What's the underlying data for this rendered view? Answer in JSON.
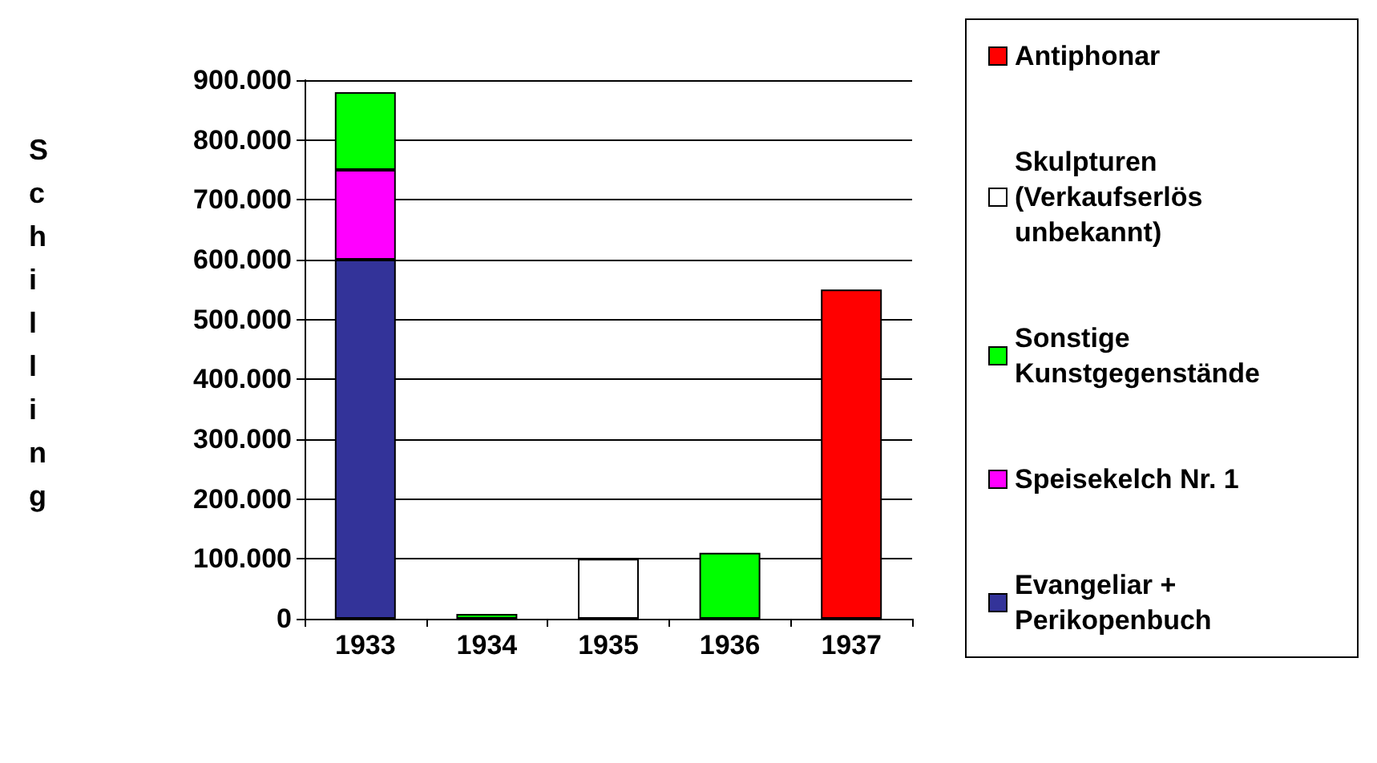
{
  "chart_data": {
    "type": "bar",
    "stacked": true,
    "ylabel": "Schilling",
    "categories": [
      "1933",
      "1934",
      "1935",
      "1936",
      "1937"
    ],
    "series": [
      {
        "name": "Evangeliar + Perikopenbuch",
        "color": "#333399",
        "values": [
          600000,
          null,
          null,
          null,
          null
        ]
      },
      {
        "name": "Speisekelch Nr. 1",
        "color": "#ff00ff",
        "values": [
          150000,
          null,
          null,
          null,
          null
        ]
      },
      {
        "name": "Sonstige Kunstgegenstände",
        "color": "#00ff00",
        "values": [
          130000,
          8000,
          null,
          110000,
          null
        ]
      },
      {
        "name": "Skulpturen (Verkaufserlös unbekannt)",
        "color": "#ffffff",
        "values": [
          null,
          null,
          100000,
          null,
          null
        ]
      },
      {
        "name": "Antiphonar",
        "color": "#ff0000",
        "values": [
          null,
          null,
          null,
          null,
          550000
        ]
      }
    ],
    "ylim": [
      0,
      900000
    ],
    "yticks": [
      {
        "value": 0,
        "label": "0"
      },
      {
        "value": 100000,
        "label": "100.000"
      },
      {
        "value": 200000,
        "label": "200.000"
      },
      {
        "value": 300000,
        "label": "300.000"
      },
      {
        "value": 400000,
        "label": "400.000"
      },
      {
        "value": 500000,
        "label": "500.000"
      },
      {
        "value": 600000,
        "label": "600.000"
      },
      {
        "value": 700000,
        "label": "700.000"
      },
      {
        "value": 800000,
        "label": "800.000"
      },
      {
        "value": 900000,
        "label": "900.000"
      }
    ],
    "grid": "y",
    "legend": "right"
  }
}
